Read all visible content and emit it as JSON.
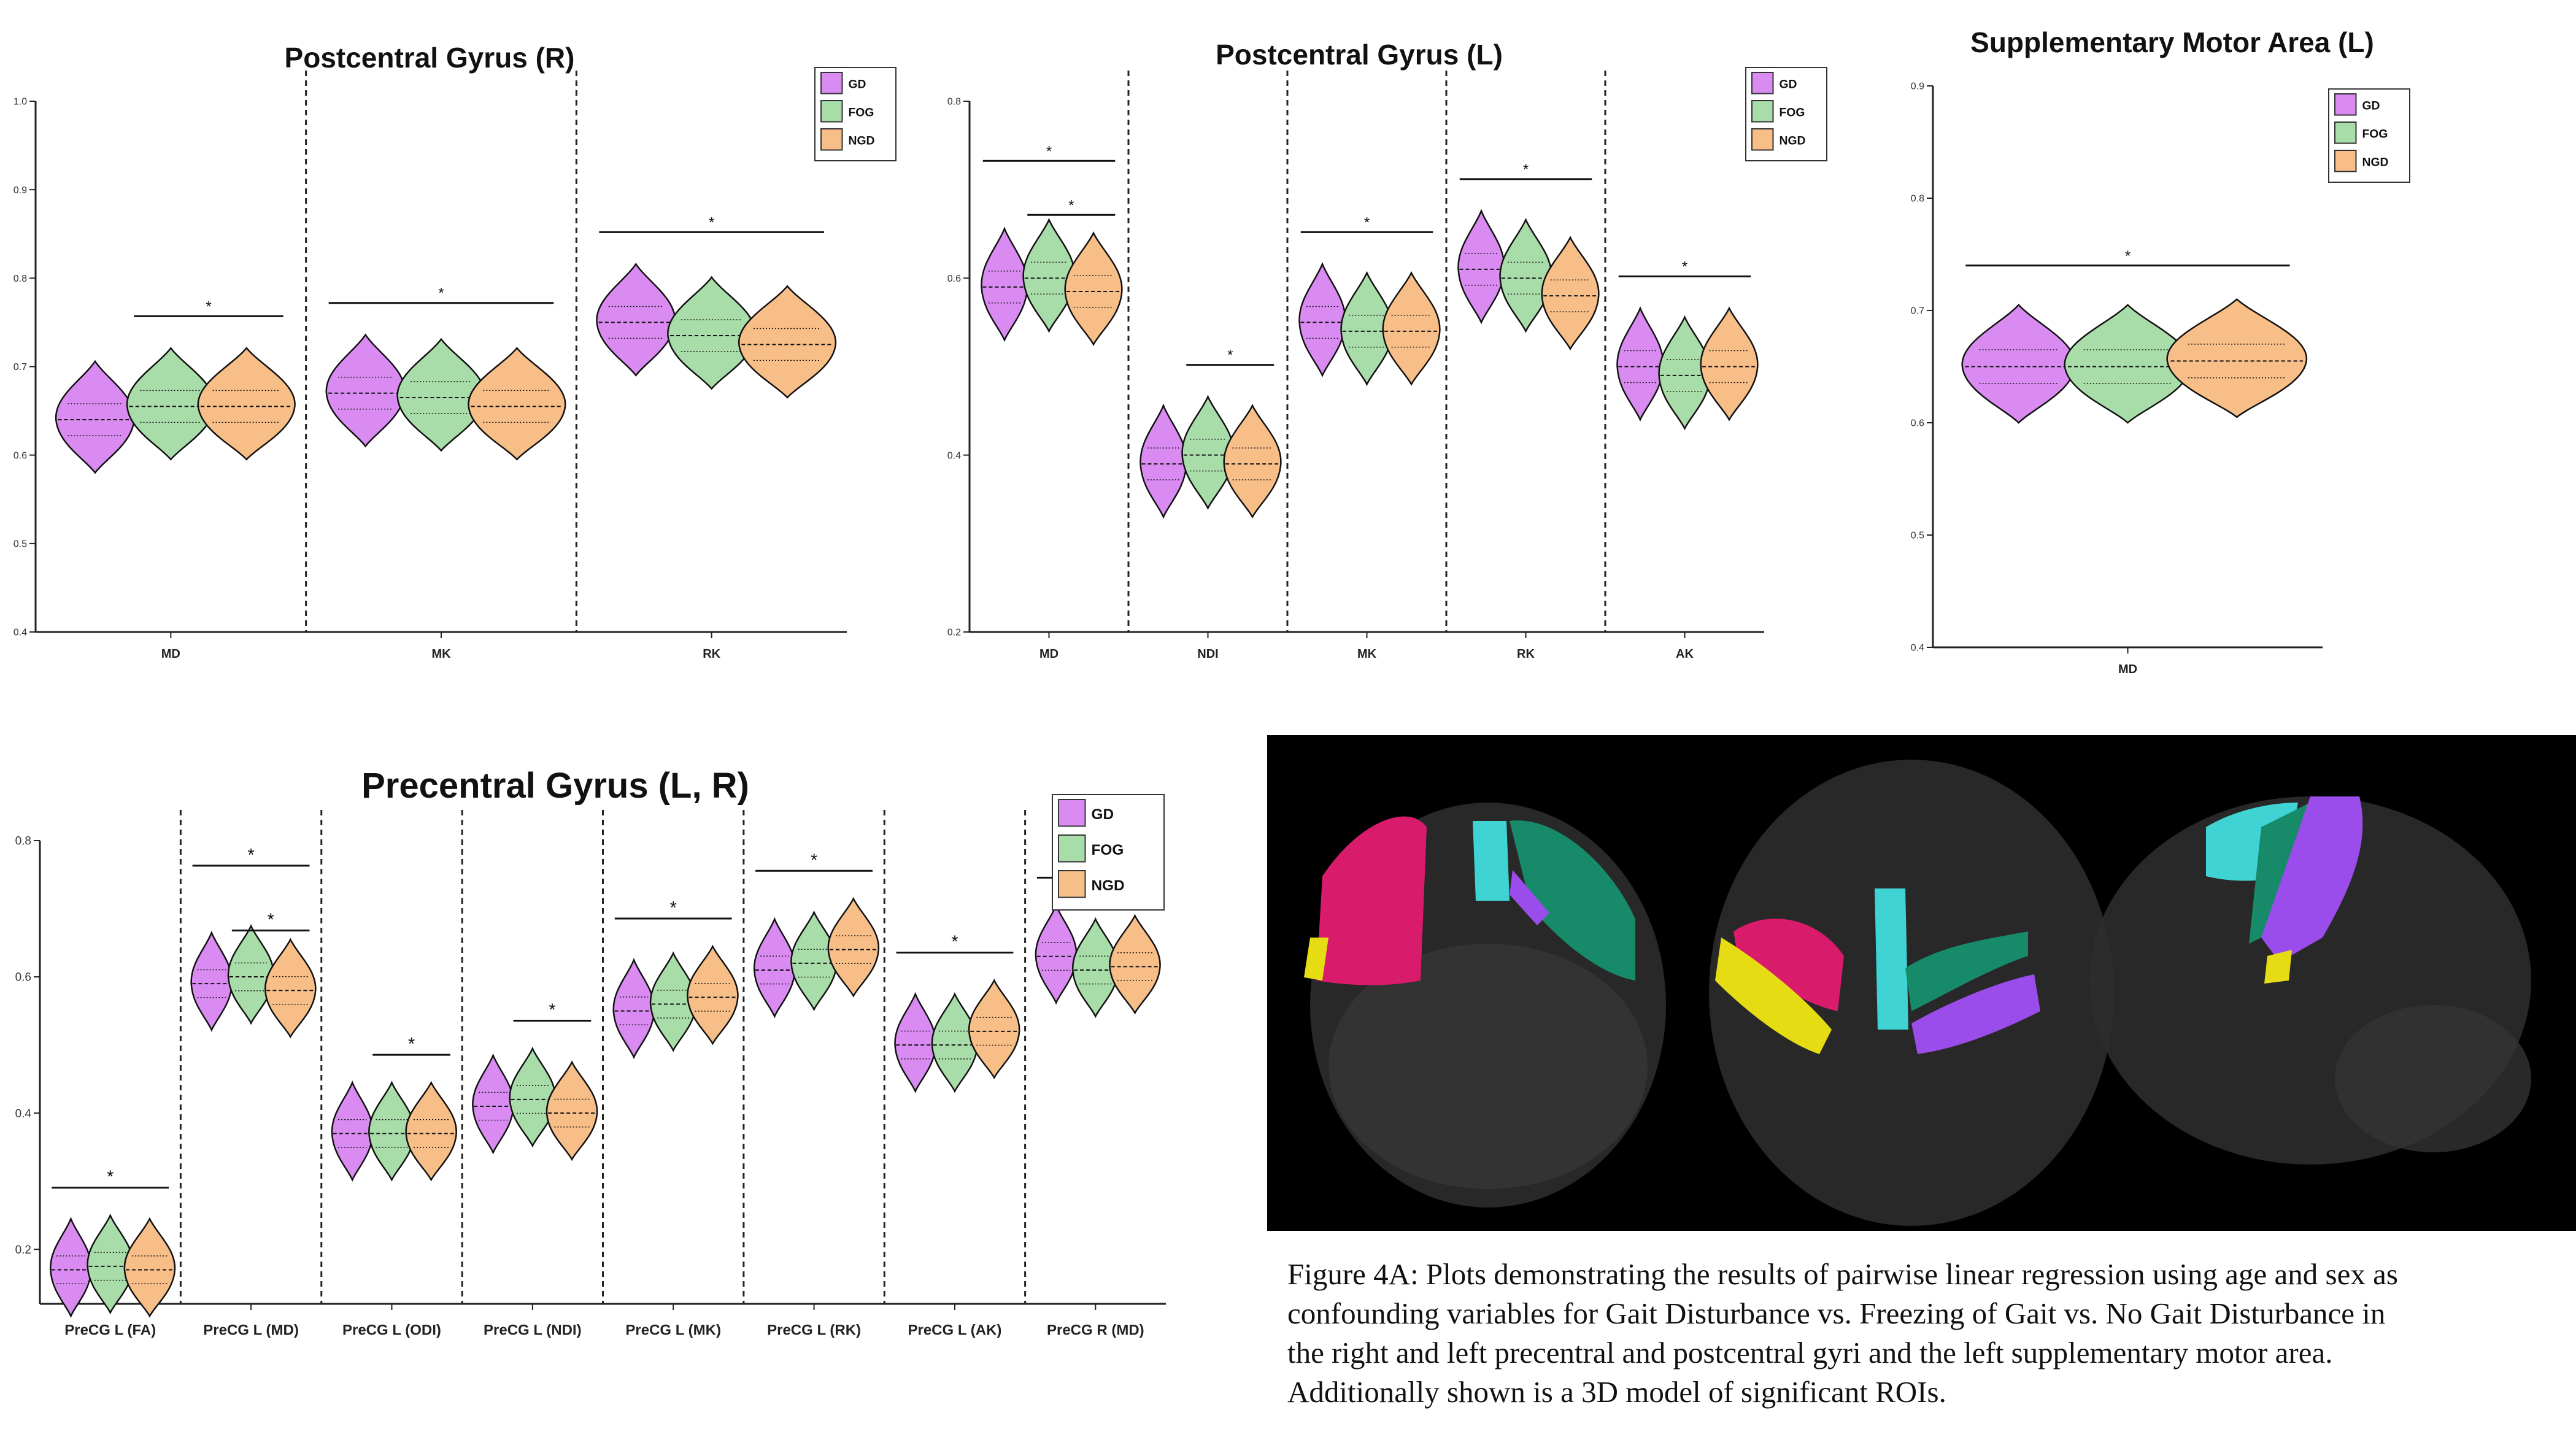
{
  "groups": [
    {
      "name": "GD",
      "color": "#D98BF2"
    },
    {
      "name": "FOG",
      "color": "#A8DCA9"
    },
    {
      "name": "NGD",
      "color": "#F7BE88"
    }
  ],
  "chart_data": [
    {
      "type": "violin",
      "title": "Postcentral Gyrus (R)",
      "ylim": [
        0.4,
        1.0
      ],
      "yticks": [
        "0.4",
        "0.5",
        "0.6",
        "0.7",
        "0.8",
        "0.9",
        "1.0"
      ],
      "categories": [
        "MD",
        "MK",
        "RK"
      ],
      "series": [
        {
          "name": "GD",
          "medians": [
            0.64,
            0.67,
            0.75
          ]
        },
        {
          "name": "FOG",
          "medians": [
            0.655,
            0.665,
            0.735
          ]
        },
        {
          "name": "NGD",
          "medians": [
            0.655,
            0.655,
            0.725
          ]
        }
      ],
      "significance": [
        {
          "category": "MD",
          "groups": [
            "FOG",
            "NGD"
          ],
          "label": "*"
        },
        {
          "category": "MK",
          "groups": [
            "GD",
            "NGD"
          ],
          "label": "*"
        },
        {
          "category": "RK",
          "groups": [
            "GD",
            "NGD"
          ],
          "label": "*"
        }
      ],
      "legend": "top-right"
    },
    {
      "type": "violin",
      "title": "Postcentral Gyrus (L)",
      "ylim": [
        0.2,
        0.8
      ],
      "yticks": [
        "0.2",
        "0.4",
        "0.6",
        "0.8"
      ],
      "categories": [
        "MD",
        "NDI",
        "MK",
        "RK",
        "AK"
      ],
      "series": [
        {
          "name": "GD",
          "medians": [
            0.59,
            0.39,
            0.55,
            0.61,
            0.5
          ]
        },
        {
          "name": "FOG",
          "medians": [
            0.6,
            0.4,
            0.54,
            0.6,
            0.49
          ]
        },
        {
          "name": "NGD",
          "medians": [
            0.585,
            0.39,
            0.54,
            0.58,
            0.5
          ]
        }
      ],
      "significance": [
        {
          "category": "MD",
          "groups": [
            "GD",
            "NGD"
          ],
          "label": "*"
        },
        {
          "category": "MD",
          "groups": [
            "FOG",
            "NGD"
          ],
          "label": "*"
        },
        {
          "category": "NDI",
          "groups": [
            "FOG",
            "NGD"
          ],
          "label": "*"
        },
        {
          "category": "MK",
          "groups": [
            "GD",
            "NGD"
          ],
          "label": "*"
        },
        {
          "category": "RK",
          "groups": [
            "GD",
            "NGD"
          ],
          "label": "*"
        },
        {
          "category": "AK",
          "groups": [
            "GD",
            "NGD"
          ],
          "label": "*"
        }
      ],
      "legend": "top-right"
    },
    {
      "type": "violin",
      "title": "Supplementary Motor Area (L)",
      "ylim": [
        0.4,
        0.9
      ],
      "yticks": [
        "0.4",
        "0.5",
        "0.6",
        "0.7",
        "0.8",
        "0.9"
      ],
      "categories": [
        "MD"
      ],
      "series": [
        {
          "name": "GD",
          "medians": [
            0.65
          ]
        },
        {
          "name": "FOG",
          "medians": [
            0.65
          ]
        },
        {
          "name": "NGD",
          "medians": [
            0.655
          ]
        }
      ],
      "significance": [
        {
          "category": "MD",
          "groups": [
            "GD",
            "NGD"
          ],
          "label": "*"
        }
      ],
      "legend": "top-right"
    },
    {
      "type": "violin",
      "title": "Precentral Gyrus (L, R)",
      "ylim": [
        0.12,
        0.8
      ],
      "yticks": [
        "0.2",
        "0.4",
        "0.6",
        "0.8"
      ],
      "categories": [
        "PreCG L (FA)",
        "PreCG L (MD)",
        "PreCG L (ODI)",
        "PreCG L (NDI)",
        "PreCG L (MK)",
        "PreCG L (RK)",
        "PreCG L (AK)",
        "PreCG R (MD)"
      ],
      "series": [
        {
          "name": "GD",
          "medians": [
            0.17,
            0.59,
            0.37,
            0.41,
            0.55,
            0.61,
            0.5,
            0.63
          ]
        },
        {
          "name": "FOG",
          "medians": [
            0.175,
            0.6,
            0.37,
            0.42,
            0.56,
            0.62,
            0.5,
            0.61
          ]
        },
        {
          "name": "NGD",
          "medians": [
            0.17,
            0.58,
            0.37,
            0.4,
            0.57,
            0.64,
            0.52,
            0.615
          ]
        }
      ],
      "significance": [
        {
          "category": "PreCG L (FA)",
          "groups": [
            "GD",
            "NGD"
          ],
          "label": "*"
        },
        {
          "category": "PreCG L (MD)",
          "groups": [
            "GD",
            "NGD"
          ],
          "label": "*"
        },
        {
          "category": "PreCG L (MD)",
          "groups": [
            "FOG",
            "NGD"
          ],
          "label": "*"
        },
        {
          "category": "PreCG L (ODI)",
          "groups": [
            "FOG",
            "NGD"
          ],
          "label": "*"
        },
        {
          "category": "PreCG L (NDI)",
          "groups": [
            "FOG",
            "NGD"
          ],
          "label": "*"
        },
        {
          "category": "PreCG L (MK)",
          "groups": [
            "GD",
            "NGD"
          ],
          "label": "*"
        },
        {
          "category": "PreCG L (RK)",
          "groups": [
            "GD",
            "NGD"
          ],
          "label": "*"
        },
        {
          "category": "PreCG L (AK)",
          "groups": [
            "GD",
            "NGD"
          ],
          "label": "*"
        },
        {
          "category": "PreCG R (MD)",
          "groups": [
            "GD",
            "NGD"
          ],
          "label": "*"
        }
      ],
      "legend": "top-right"
    }
  ],
  "caption": [
    "Figure 4A: Plots demonstrating the results of pairwise linear regression using age and sex as",
    "confounding variables for Gait Disturbance vs. Freezing of Gait vs. No Gait Disturbance in",
    "the right and left precentral and postcentral gyri and the left supplementary motor area.",
    "Additionally shown is a 3D model of significant ROIs."
  ],
  "brain_model": {
    "regions": [
      {
        "name": "postcentral-gyrus-r",
        "color": "#D81B6B"
      },
      {
        "name": "precentral-gyrus",
        "color": "#E6DC13"
      },
      {
        "name": "supplementary-motor-area",
        "color": "#3FD3D4"
      },
      {
        "name": "postcentral-gyrus-l",
        "color": "#178A6A"
      },
      {
        "name": "precentral-gyrus-l",
        "color": "#9A4DEB"
      }
    ]
  }
}
